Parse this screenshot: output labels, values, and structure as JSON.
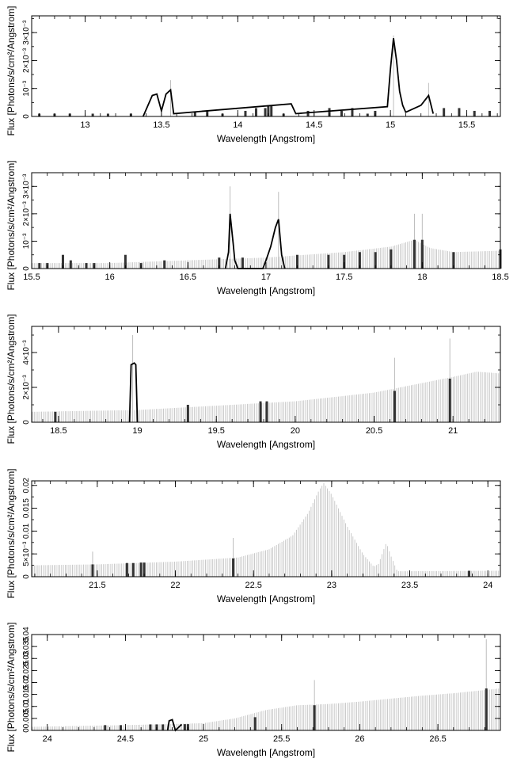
{
  "figure": {
    "background": "#ffffff",
    "frame_color": "#000000",
    "error_color": "#bdbdbd",
    "data_color": "#000000"
  },
  "chart_data": [
    {
      "type": "line",
      "xlabel": "Wavelength [Angstrom]",
      "ylabel": "Flux [Photons/s/cm²/Angstrom]",
      "xlim": [
        12.65,
        15.72
      ],
      "ylim": [
        0,
        0.0036
      ],
      "xticks": [
        13,
        13.5,
        14,
        14.5,
        15,
        15.5
      ],
      "xtick_labels": [
        "13",
        "13.5",
        "14",
        "14.5",
        "15",
        "15.5"
      ],
      "xtick_step": 0.1,
      "yticks": [
        0,
        0.001,
        0.002,
        0.003
      ],
      "ytick_labels": [
        "0",
        "10⁻³",
        "2×10⁻³",
        "3×10⁻³"
      ],
      "ytick_step": 0.0005,
      "lines": [
        [
          13.38,
          0
        ],
        [
          13.44,
          0.00075
        ],
        [
          13.47,
          0.0008
        ],
        [
          13.5,
          0.0002
        ],
        [
          13.53,
          0.0008
        ],
        [
          13.56,
          0.00095
        ],
        [
          13.58,
          0.0001
        ],
        [
          14.35,
          0.00045
        ],
        [
          14.38,
          0.0001
        ],
        [
          14.98,
          0.00035
        ],
        [
          15.0,
          0.0017
        ],
        [
          15.02,
          0.0028
        ],
        [
          15.04,
          0.002
        ],
        [
          15.06,
          0.0009
        ],
        [
          15.08,
          0.0004
        ],
        [
          15.1,
          0.00015
        ],
        [
          15.2,
          0.0004
        ],
        [
          15.25,
          0.00075
        ],
        [
          15.28,
          0.0001
        ]
      ],
      "bins": [
        [
          12.7,
          0.0001
        ],
        [
          12.8,
          0.0001
        ],
        [
          12.9,
          0.0001
        ],
        [
          13.05,
          0.0001
        ],
        [
          13.15,
          0.0001
        ],
        [
          13.3,
          0.0001
        ],
        [
          13.72,
          0.00015
        ],
        [
          13.8,
          0.0002
        ],
        [
          13.9,
          0.0001
        ],
        [
          14.05,
          0.0002
        ],
        [
          14.12,
          0.0003
        ],
        [
          14.18,
          0.0003
        ],
        [
          14.2,
          0.0004
        ],
        [
          14.22,
          0.0004
        ],
        [
          14.3,
          0.0001
        ],
        [
          14.46,
          0.0002
        ],
        [
          14.6,
          0.0003
        ],
        [
          14.68,
          0.0002
        ],
        [
          14.75,
          0.0003
        ],
        [
          14.85,
          0.0001
        ],
        [
          14.9,
          0.0002
        ],
        [
          15.35,
          0.0003
        ],
        [
          15.45,
          0.0003
        ],
        [
          15.55,
          0.0002
        ],
        [
          15.65,
          0.0002
        ]
      ],
      "error_bars": [
        [
          13.56,
          0.0013
        ],
        [
          15.02,
          0.0029
        ],
        [
          15.25,
          0.0012
        ]
      ]
    },
    {
      "type": "line",
      "xlabel": "Wavelength [Angstrom]",
      "ylabel": "Flux [Photons/s/cm²/Angstrom]",
      "xlim": [
        15.5,
        18.5
      ],
      "ylim": [
        0,
        0.0035
      ],
      "xticks": [
        15.5,
        16,
        16.5,
        17,
        17.5,
        18,
        18.5
      ],
      "xtick_labels": [
        "15.5",
        "16",
        "16.5",
        "17",
        "17.5",
        "18",
        "18.5"
      ],
      "xtick_step": 0.1,
      "yticks": [
        0,
        0.001,
        0.002,
        0.003
      ],
      "ytick_labels": [
        "0",
        "10⁻³",
        "2×10⁻³",
        "3×10⁻³"
      ],
      "ytick_step": 0.0005,
      "background": [
        [
          15.5,
          0.0002
        ],
        [
          16.0,
          0.0002
        ],
        [
          16.5,
          0.0003
        ],
        [
          17.0,
          0.0004
        ],
        [
          17.5,
          0.0006
        ],
        [
          17.8,
          0.0008
        ],
        [
          17.95,
          0.00105
        ],
        [
          18.05,
          0.00075
        ],
        [
          18.2,
          0.0006
        ],
        [
          18.5,
          0.00065
        ]
      ],
      "lines": [
        [
          16.74,
          0
        ],
        [
          16.76,
          0.0006
        ],
        [
          16.77,
          0.002
        ],
        [
          16.79,
          0.0009
        ],
        [
          16.8,
          0.0003
        ],
        [
          16.82,
          0
        ],
        [
          16.98,
          0
        ],
        [
          17.0,
          0.0003
        ],
        [
          17.03,
          0.0008
        ],
        [
          17.06,
          0.0015
        ],
        [
          17.08,
          0.0018
        ],
        [
          17.1,
          0.0005
        ],
        [
          17.12,
          0
        ]
      ],
      "bins": [
        [
          15.55,
          0.0002
        ],
        [
          15.6,
          0.0002
        ],
        [
          15.7,
          0.0005
        ],
        [
          15.75,
          0.0003
        ],
        [
          15.85,
          0.0002
        ],
        [
          15.9,
          0.0002
        ],
        [
          16.1,
          0.0005
        ],
        [
          16.2,
          0.0002
        ],
        [
          16.35,
          0.0003
        ],
        [
          16.7,
          0.0004
        ],
        [
          16.85,
          0.0004
        ],
        [
          17.2,
          0.0005
        ],
        [
          17.4,
          0.0005
        ],
        [
          17.5,
          0.0005
        ],
        [
          17.6,
          0.0006
        ],
        [
          17.7,
          0.0006
        ],
        [
          17.8,
          0.0007
        ],
        [
          17.95,
          0.00105
        ],
        [
          18.0,
          0.00105
        ],
        [
          18.2,
          0.0006
        ],
        [
          18.5,
          0.0007
        ]
      ],
      "error_bars": [
        [
          16.77,
          0.003
        ],
        [
          17.08,
          0.0028
        ],
        [
          17.95,
          0.002
        ],
        [
          18.0,
          0.002
        ]
      ]
    },
    {
      "type": "line",
      "xlabel": "Wavelength [Angstrom]",
      "ylabel": "Flux [Photons/s/cm²/Angstrom]",
      "xlim": [
        18.33,
        21.3
      ],
      "ylim": [
        0,
        0.0055
      ],
      "xticks": [
        18.5,
        19,
        19.5,
        20,
        20.5,
        21
      ],
      "xtick_labels": [
        "18.5",
        "19",
        "19.5",
        "20",
        "20.5",
        "21"
      ],
      "xtick_step": 0.1,
      "yticks": [
        0,
        0.002,
        0.004
      ],
      "ytick_labels": [
        "0",
        "2×10⁻³",
        "4×10⁻³"
      ],
      "ytick_step": 0.001,
      "background": [
        [
          18.35,
          0.0006
        ],
        [
          19.0,
          0.0007
        ],
        [
          19.5,
          0.00095
        ],
        [
          20.0,
          0.0012
        ],
        [
          20.5,
          0.0017
        ],
        [
          21.0,
          0.0026
        ],
        [
          21.15,
          0.0029
        ],
        [
          21.3,
          0.0028
        ]
      ],
      "lines": [
        [
          18.95,
          0
        ],
        [
          18.96,
          0.0033
        ],
        [
          18.98,
          0.0034
        ],
        [
          18.99,
          0.0033
        ],
        [
          19.0,
          0
        ]
      ],
      "bins": [
        [
          18.48,
          0.0006
        ],
        [
          19.32,
          0.001
        ],
        [
          19.78,
          0.0012
        ],
        [
          19.82,
          0.0012
        ],
        [
          20.63,
          0.0018
        ],
        [
          20.98,
          0.0025
        ]
      ],
      "error_bars": [
        [
          18.97,
          0.005
        ],
        [
          20.63,
          0.0037
        ],
        [
          20.98,
          0.0048
        ]
      ]
    },
    {
      "type": "line",
      "xlabel": "Wavelength [Angstrom]",
      "ylabel": "Flux [Photons/s/cm²/Angstrom]",
      "xlim": [
        21.08,
        24.08
      ],
      "ylim": [
        0,
        0.021
      ],
      "xticks": [
        21.5,
        22,
        22.5,
        23,
        23.5,
        24
      ],
      "xtick_labels": [
        "21.5",
        "22",
        "22.5",
        "23",
        "23.5",
        "24"
      ],
      "xtick_step": 0.1,
      "yticks": [
        0,
        0.005,
        0.01,
        0.015,
        0.02
      ],
      "ytick_labels": [
        "0",
        "5×10⁻³",
        "0.01",
        "0.015",
        "0.02"
      ],
      "ytick_step": 0.0025,
      "background": [
        [
          21.08,
          0.0025
        ],
        [
          21.5,
          0.0027
        ],
        [
          22.0,
          0.0033
        ],
        [
          22.4,
          0.0042
        ],
        [
          22.6,
          0.006
        ],
        [
          22.75,
          0.009
        ],
        [
          22.85,
          0.014
        ],
        [
          22.92,
          0.019
        ],
        [
          22.95,
          0.0205
        ],
        [
          23.0,
          0.018
        ],
        [
          23.1,
          0.011
        ],
        [
          23.2,
          0.005
        ],
        [
          23.27,
          0.0022
        ],
        [
          23.3,
          0.0028
        ],
        [
          23.35,
          0.0075
        ],
        [
          23.38,
          0.0045
        ],
        [
          23.42,
          0.0012
        ],
        [
          23.5,
          0.0012
        ],
        [
          24.08,
          0.0013
        ]
      ],
      "lines": [],
      "bins": [
        [
          21.47,
          0.0027
        ],
        [
          21.69,
          0.003
        ],
        [
          21.73,
          0.003
        ],
        [
          21.78,
          0.0031
        ],
        [
          21.8,
          0.0031
        ],
        [
          22.37,
          0.004
        ],
        [
          23.88,
          0.0013
        ]
      ],
      "error_bars": [
        [
          21.47,
          0.0055
        ],
        [
          22.37,
          0.0085
        ]
      ]
    },
    {
      "type": "line",
      "xlabel": "Wavelength [Angstrom]",
      "ylabel": "Flux [Photons/s/cm²/Angstrom]",
      "xlim": [
        23.9,
        26.9
      ],
      "ylim": [
        0,
        0.04
      ],
      "xticks": [
        24,
        24.5,
        25,
        25.5,
        26,
        26.5
      ],
      "xtick_labels": [
        "24",
        "24.5",
        "25",
        "25.5",
        "26",
        "26.5"
      ],
      "xtick_step": 0.1,
      "yticks": [
        0,
        0.005,
        0.01,
        0.015,
        0.02,
        0.025,
        0.03,
        0.035,
        0.04
      ],
      "ytick_labels": [
        "0",
        "0.005",
        "0.01",
        "0.015",
        "0.02",
        "0.025",
        "0.03",
        "0.035",
        "0.04"
      ],
      "ytick_step": 0.005,
      "background": [
        [
          23.9,
          0.0015
        ],
        [
          24.5,
          0.0022
        ],
        [
          25.0,
          0.003
        ],
        [
          25.2,
          0.005
        ],
        [
          25.4,
          0.0085
        ],
        [
          25.6,
          0.0105
        ],
        [
          25.8,
          0.011
        ],
        [
          26.0,
          0.012
        ],
        [
          26.4,
          0.0145
        ],
        [
          26.6,
          0.0155
        ],
        [
          26.9,
          0.0175
        ]
      ],
      "lines": [
        [
          24.77,
          0
        ],
        [
          24.78,
          0.004
        ],
        [
          24.8,
          0.0045
        ],
        [
          24.82,
          0
        ],
        [
          24.86,
          0.0025
        ]
      ],
      "bins": [
        [
          24.37,
          0.0022
        ],
        [
          24.47,
          0.0022
        ],
        [
          24.66,
          0.0025
        ],
        [
          24.7,
          0.0025
        ],
        [
          24.74,
          0.0025
        ],
        [
          24.88,
          0.0026
        ],
        [
          24.9,
          0.0026
        ],
        [
          25.33,
          0.0055
        ],
        [
          25.71,
          0.0105
        ],
        [
          26.81,
          0.0175
        ]
      ],
      "error_bars": [
        [
          25.71,
          0.021
        ],
        [
          26.81,
          0.038
        ]
      ]
    }
  ]
}
